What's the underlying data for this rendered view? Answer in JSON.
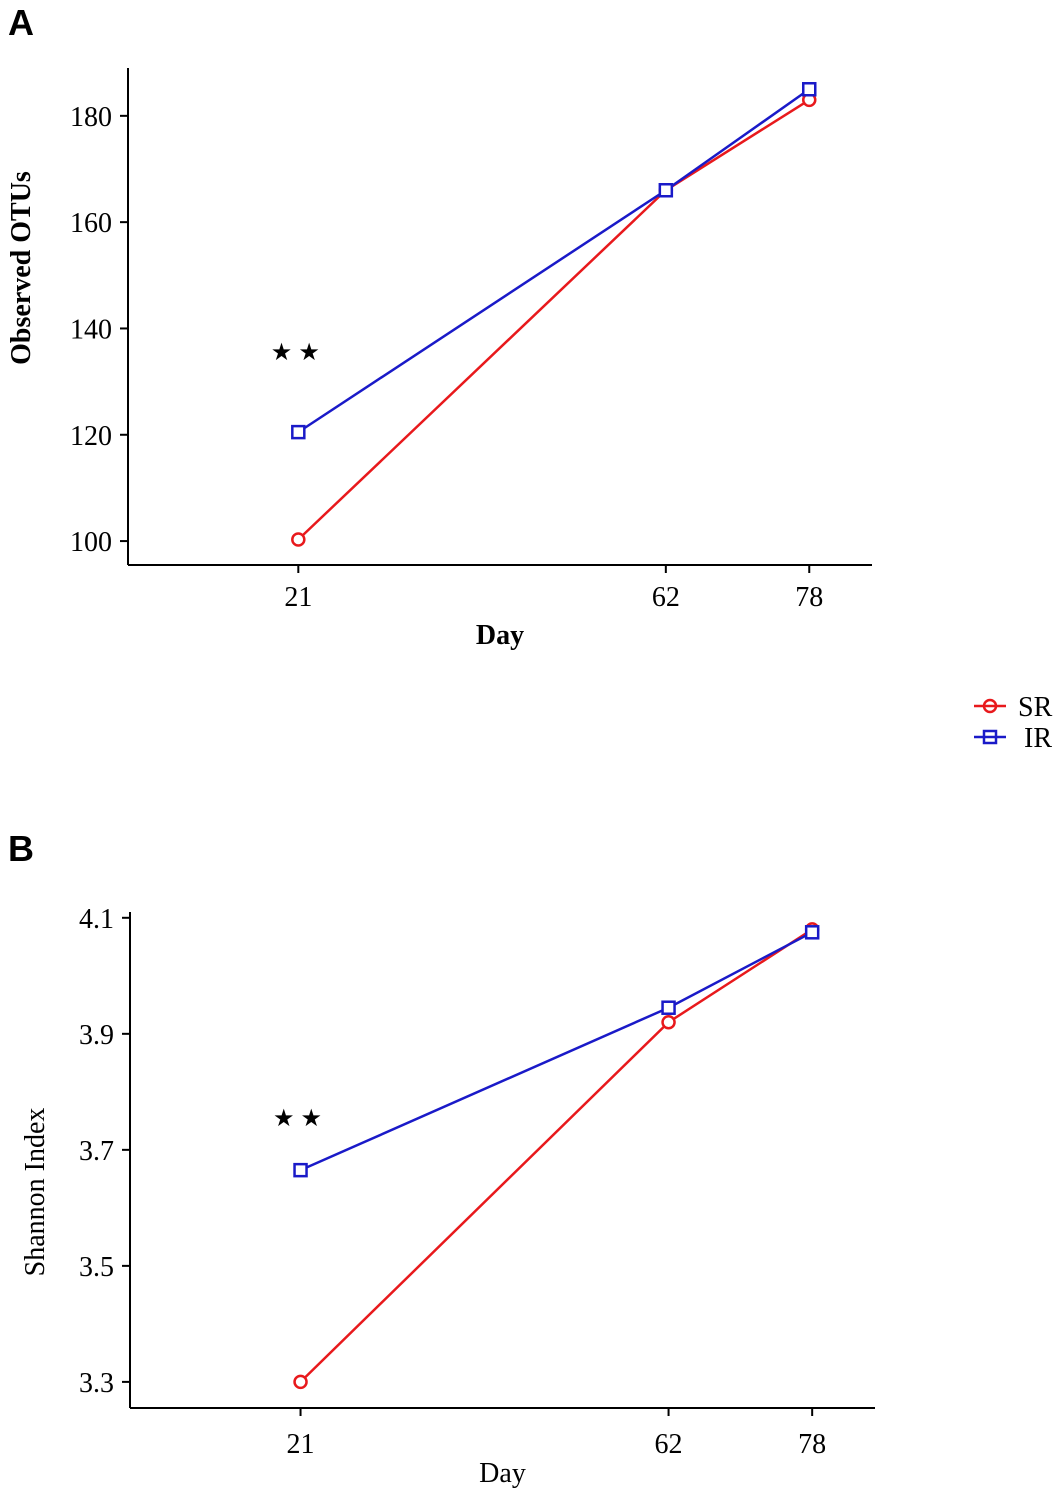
{
  "panels": {
    "a_label": "A",
    "b_label": "B"
  },
  "legend": {
    "items": [
      {
        "name": "SR",
        "color": "#e8191c",
        "marker": "circle"
      },
      {
        "name": "IR",
        "color": "#1a1ac8",
        "marker": "square"
      }
    ]
  },
  "significance_mark": "★★",
  "chart_data": [
    {
      "type": "line",
      "panel": "A",
      "title": "",
      "xlabel": "Day",
      "ylabel": "Observed OTUs",
      "x": [
        21,
        62,
        78
      ],
      "xticks": [
        "21",
        "62",
        "78"
      ],
      "xlim": [
        2,
        85
      ],
      "ylim": [
        95.5,
        189
      ],
      "yticks": [
        100,
        120,
        140,
        160,
        180
      ],
      "series": [
        {
          "name": "SR",
          "color": "#e8191c",
          "marker": "circle",
          "values": [
            100.3,
            166,
            183
          ]
        },
        {
          "name": "IR",
          "color": "#1a1ac8",
          "marker": "square",
          "values": [
            120.5,
            166,
            185
          ]
        }
      ],
      "annotation": {
        "text": "★★",
        "x": 21,
        "y": 133.5
      }
    },
    {
      "type": "line",
      "panel": "B",
      "title": "",
      "xlabel": "Day",
      "ylabel": "Shannon Index",
      "x": [
        21,
        62,
        78
      ],
      "xticks": [
        "21",
        "62",
        "78"
      ],
      "xlim": [
        2,
        85
      ],
      "ylim": [
        3.255,
        4.11
      ],
      "yticks": [
        3.3,
        3.5,
        3.7,
        3.9,
        4.1
      ],
      "ytick_labels": [
        "3.3",
        "3.5",
        "3.7",
        "3.9",
        "4.1"
      ],
      "series": [
        {
          "name": "SR",
          "color": "#e8191c",
          "marker": "circle",
          "values": [
            3.3,
            3.92,
            4.08
          ]
        },
        {
          "name": "IR",
          "color": "#1a1ac8",
          "marker": "square",
          "values": [
            3.665,
            3.945,
            4.075
          ]
        }
      ],
      "annotation": {
        "text": "★★",
        "x": 21,
        "y": 3.78
      }
    }
  ]
}
